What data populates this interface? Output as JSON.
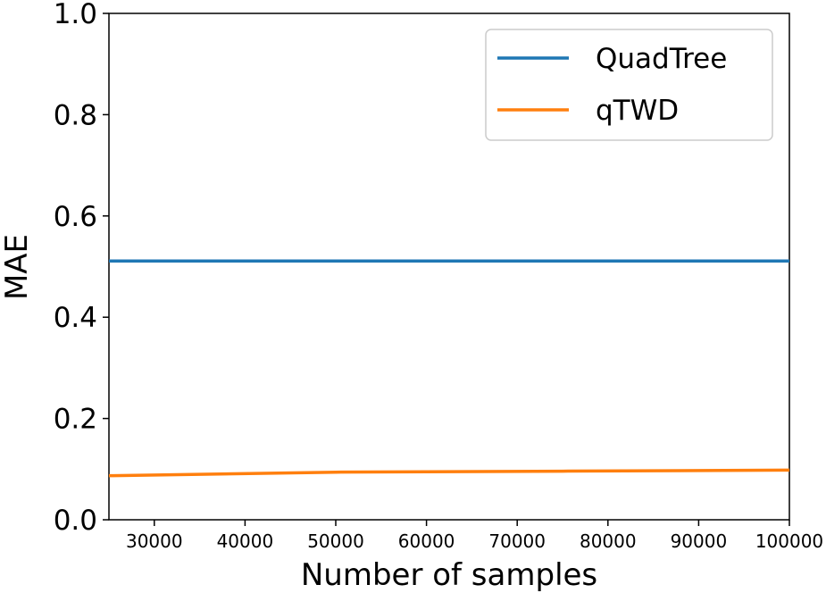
{
  "chart_data": {
    "type": "line",
    "title": "",
    "xlabel": "Number of samples",
    "ylabel": "MAE",
    "xlim": [
      25000,
      100000
    ],
    "ylim": [
      0.0,
      1.0
    ],
    "x_ticks": [
      30000,
      40000,
      50000,
      60000,
      70000,
      80000,
      90000,
      100000
    ],
    "x_tick_labels": [
      "30000",
      "40000",
      "50000",
      "60000",
      "70000",
      "80000",
      "90000",
      "100000"
    ],
    "y_ticks": [
      0.0,
      0.2,
      0.4,
      0.6,
      0.8,
      1.0
    ],
    "y_tick_labels": [
      "0.0",
      "0.2",
      "0.4",
      "0.6",
      "0.8",
      "1.0"
    ],
    "grid": false,
    "legend_position": "top-right",
    "series": [
      {
        "name": "QuadTree",
        "color": "#1f77b4",
        "x": [
          25000,
          50000,
          75000,
          100000
        ],
        "y": [
          0.511,
          0.511,
          0.511,
          0.511
        ]
      },
      {
        "name": "qTWD",
        "color": "#ff7f0e",
        "x": [
          25000,
          50000,
          75000,
          100000
        ],
        "y": [
          0.087,
          0.094,
          0.096,
          0.098
        ]
      }
    ]
  }
}
